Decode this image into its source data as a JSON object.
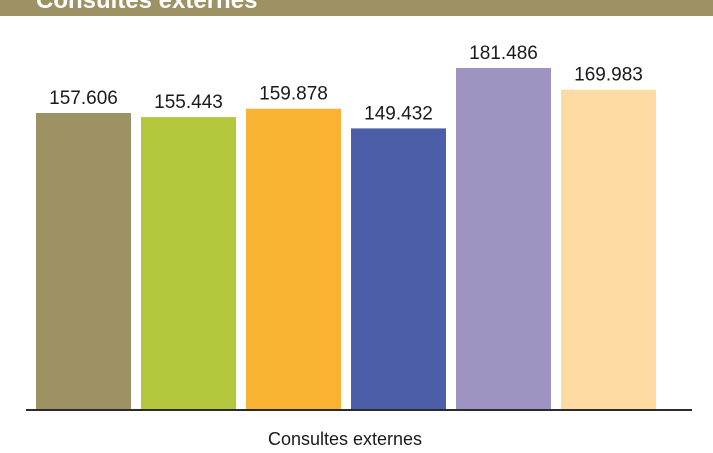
{
  "header": {
    "title": "Consultes externes"
  },
  "chart_data": {
    "type": "bar",
    "categories": [
      "",
      "",
      "",
      "",
      "",
      ""
    ],
    "series": [
      {
        "values": [
          157606,
          155443,
          159878,
          149432,
          181486,
          169983
        ],
        "labels": [
          "157.606",
          "155.443",
          "159.878",
          "149.432",
          "181.486",
          "169.983"
        ]
      }
    ],
    "colors": [
      "#9c9263",
      "#b5c73d",
      "#f9b233",
      "#4d5ea8",
      "#9f93c2",
      "#fddba3"
    ],
    "xlabel": "Consultes externes",
    "ylabel": "",
    "ylim": [
      0,
      200000
    ],
    "grid": false,
    "legend": "none"
  }
}
